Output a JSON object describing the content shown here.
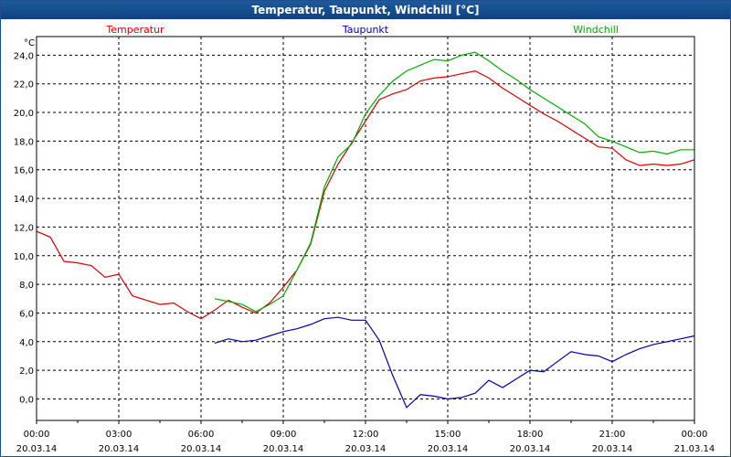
{
  "window": {
    "title": "Temperatur, Taupunkt, Windchill [°C]"
  },
  "colors": {
    "frame": "#1f4f8f",
    "grid": "#000000"
  },
  "chart_data": {
    "type": "line",
    "title": "Temperatur, Taupunkt, Windchill [°C]",
    "ylabel": "°C",
    "xlabel": "",
    "ylim": [
      -1.5,
      25.3
    ],
    "xlim_hours": [
      0,
      24
    ],
    "yticks": [
      0,
      2,
      4,
      6,
      8,
      10,
      12,
      14,
      16,
      18,
      20,
      22,
      24
    ],
    "ytick_labels": [
      "0,0",
      "2,0",
      "4,0",
      "6,0",
      "8,0",
      "10,0",
      "12,0",
      "14,0",
      "16,0",
      "18,0",
      "20,0",
      "22,0",
      "24,0"
    ],
    "xticks": [
      {
        "time": "00:00",
        "date": "20.03.14"
      },
      {
        "time": "03:00",
        "date": "20.03.14"
      },
      {
        "time": "06:00",
        "date": "20.03.14"
      },
      {
        "time": "09:00",
        "date": "20.03.14"
      },
      {
        "time": "12:00",
        "date": "20.03.14"
      },
      {
        "time": "15:00",
        "date": "20.03.14"
      },
      {
        "time": "18:00",
        "date": "20.03.14"
      },
      {
        "time": "21:00",
        "date": "20.03.14"
      },
      {
        "time": "00:00",
        "date": "21.03.14"
      }
    ],
    "grid": true,
    "legend_placement": "top",
    "series": [
      {
        "name": "Temperatur",
        "color": "#e00000",
        "legend_align": "left",
        "x": [
          0,
          0.5,
          1,
          1.5,
          2,
          2.5,
          3,
          3.5,
          4,
          4.5,
          5,
          5.5,
          6,
          6.5,
          7,
          7.5,
          8,
          8.5,
          9,
          9.5,
          10,
          10.5,
          11,
          11.5,
          12,
          12.5,
          13,
          13.5,
          14,
          14.5,
          15,
          15.5,
          16,
          16.5,
          17,
          17.5,
          18,
          18.5,
          19,
          19.5,
          20,
          20.5,
          21,
          21.5,
          22,
          22.5,
          23,
          23.5,
          24
        ],
        "y": [
          11.7,
          11.3,
          9.6,
          9.5,
          9.3,
          8.5,
          8.7,
          7.2,
          6.9,
          6.6,
          6.7,
          6.1,
          5.6,
          6.2,
          6.9,
          6.4,
          6.0,
          6.7,
          7.8,
          9.0,
          10.8,
          14.5,
          16.4,
          17.9,
          19.4,
          20.9,
          21.3,
          21.6,
          22.2,
          22.4,
          22.5,
          22.7,
          22.9,
          22.4,
          21.7,
          21.1,
          20.5,
          19.9,
          19.4,
          18.8,
          18.2,
          17.6,
          17.5,
          16.7,
          16.3,
          16.4,
          16.3,
          16.4,
          16.7
        ]
      },
      {
        "name": "Taupunkt",
        "color": "#0000b0",
        "legend_align": "center",
        "x": [
          6.5,
          7,
          7.5,
          8,
          8.5,
          9,
          9.5,
          10,
          10.5,
          11,
          11.5,
          12,
          12.5,
          13,
          13.5,
          14,
          14.5,
          15,
          15.5,
          16,
          16.5,
          17,
          17.5,
          18,
          18.5,
          19,
          19.5,
          20,
          20.5,
          21,
          21.5,
          22,
          22.5,
          23,
          23.5,
          24
        ],
        "y": [
          3.9,
          4.2,
          4.0,
          4.1,
          4.4,
          4.7,
          4.9,
          5.2,
          5.6,
          5.7,
          5.5,
          5.5,
          4.1,
          1.6,
          -0.6,
          0.3,
          0.2,
          0.0,
          0.1,
          0.4,
          1.3,
          0.8,
          1.4,
          2.0,
          1.9,
          2.6,
          3.3,
          3.1,
          3.0,
          2.6,
          3.1,
          3.5,
          3.8,
          4.0,
          4.2,
          4.4
        ]
      },
      {
        "name": "Windchill",
        "color": "#00b000",
        "legend_align": "right",
        "x": [
          6.5,
          7,
          7.5,
          8,
          8.5,
          9,
          9.5,
          10,
          10.5,
          11,
          11.5,
          12,
          12.5,
          13,
          13.5,
          14,
          14.5,
          15,
          15.5,
          16,
          16.5,
          17,
          17.5,
          18,
          18.5,
          19,
          19.5,
          20,
          20.5,
          21,
          21.5,
          22,
          22.5,
          23,
          23.5,
          24
        ],
        "y": [
          7.0,
          6.8,
          6.6,
          6.1,
          6.6,
          7.2,
          9.0,
          10.9,
          14.8,
          16.9,
          17.8,
          19.9,
          21.2,
          22.2,
          22.9,
          23.3,
          23.7,
          23.6,
          24.0,
          24.2,
          23.6,
          22.9,
          22.3,
          21.6,
          21.0,
          20.4,
          19.8,
          19.2,
          18.3,
          18.0,
          17.6,
          17.2,
          17.3,
          17.1,
          17.4,
          17.4
        ]
      }
    ]
  }
}
